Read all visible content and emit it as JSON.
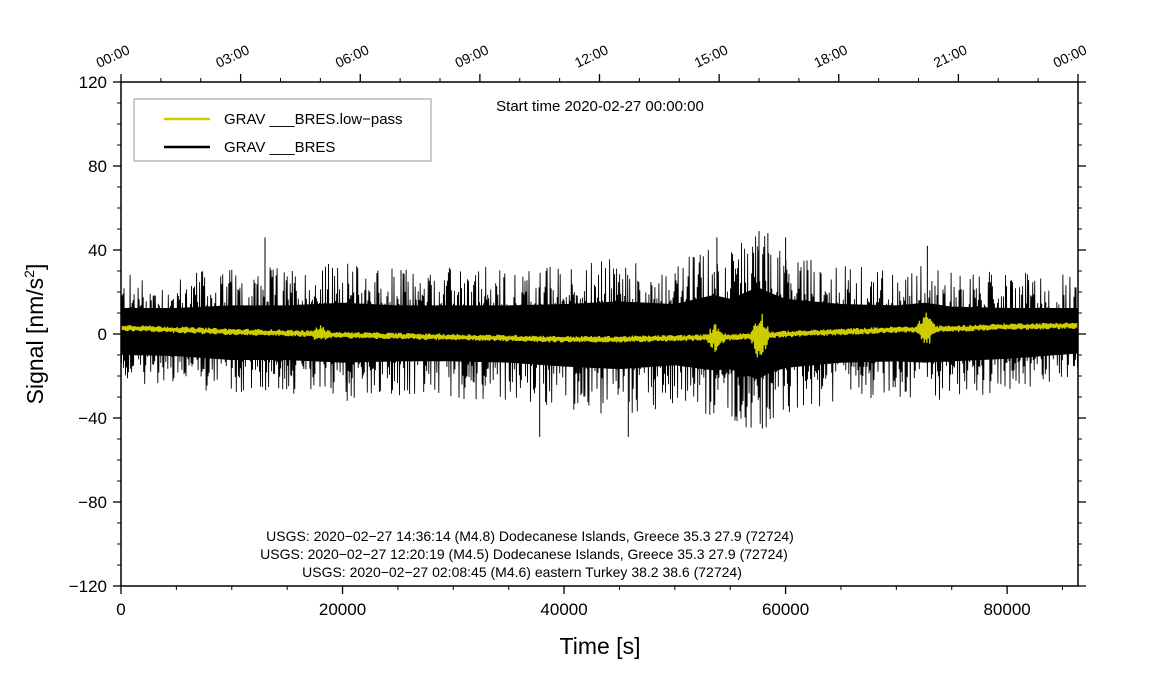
{
  "chart_data": {
    "type": "line",
    "title": "Start time 2020-02-27 00:00:00",
    "xlabel": "Time [s]",
    "ylabel": "Signal [nm/s²]",
    "ylabel_main": "Signal [nm/s",
    "ylabel_sup": "2",
    "ylabel_tail": "]",
    "xlim": [
      0,
      86400
    ],
    "ylim": [
      -120,
      120
    ],
    "x_ticks": [
      0,
      20000,
      40000,
      60000,
      80000
    ],
    "x_tick_labels": [
      "0",
      "20000",
      "40000",
      "60000",
      "80000"
    ],
    "y_ticks": [
      120,
      80,
      40,
      0,
      -40,
      -80,
      -120
    ],
    "y_tick_labels": [
      "120",
      "80",
      "40",
      "0",
      "−40",
      "−80",
      "−120"
    ],
    "top_axis": {
      "ticks": [
        0,
        10800,
        21600,
        32400,
        43200,
        54000,
        64800,
        75600,
        86400
      ],
      "labels": [
        "00:00",
        "03:00",
        "06:00",
        "09:00",
        "12:00",
        "15:00",
        "18:00",
        "21:00",
        "00:00"
      ]
    },
    "legend": {
      "placement": "top-left",
      "entries": [
        {
          "label": "GRAV ___BRES.low−pass",
          "color": "#cccc00"
        },
        {
          "label": "GRAV ___BRES",
          "color": "#000000"
        }
      ]
    },
    "series": [
      {
        "name": "GRAV ___BRES",
        "color": "#000000",
        "envelope_x": [
          0,
          5000,
          10000,
          15000,
          20000,
          25000,
          30000,
          35000,
          40000,
          45000,
          50000,
          53500,
          55000,
          57500,
          58500,
          60000,
          65000,
          70000,
          72600,
          75000,
          80000,
          86400
        ],
        "envelope_upper": [
          20,
          20,
          22,
          22,
          24,
          22,
          22,
          22,
          23,
          25,
          23,
          30,
          27,
          36,
          32,
          27,
          23,
          22,
          24,
          21,
          20,
          20
        ],
        "envelope_lower": [
          -16,
          -17,
          -20,
          -20,
          -22,
          -21,
          -21,
          -22,
          -25,
          -27,
          -24,
          -28,
          -27,
          -35,
          -30,
          -26,
          -22,
          -21,
          -22,
          -21,
          -19,
          -15
        ],
        "spikes": [
          {
            "x": 13000,
            "value": 46
          },
          {
            "x": 37800,
            "value": -49
          },
          {
            "x": 45800,
            "value": -49
          },
          {
            "x": 53800,
            "value": 46
          },
          {
            "x": 57600,
            "value": 49
          },
          {
            "x": 57900,
            "value": -45
          },
          {
            "x": 58400,
            "value": 48
          },
          {
            "x": 60000,
            "value": 46
          },
          {
            "x": 72800,
            "value": 42
          }
        ]
      },
      {
        "name": "GRAV ___BRES.low−pass",
        "color": "#cccc00",
        "x": [
          0,
          5000,
          10000,
          15000,
          20000,
          25000,
          30000,
          35000,
          40000,
          45000,
          50000,
          55000,
          60000,
          65000,
          70000,
          75000,
          80000,
          86400
        ],
        "y": [
          3,
          2,
          1,
          0.5,
          -0.5,
          -1,
          -1.5,
          -2,
          -2.5,
          -2.5,
          -2,
          -1.5,
          0,
          1,
          2,
          2.5,
          3.5,
          4
        ],
        "bursts": [
          {
            "x": 53700,
            "amplitude": 6
          },
          {
            "x": 57700,
            "amplitude": 12
          },
          {
            "x": 72700,
            "amplitude": 8
          },
          {
            "x": 18000,
            "amplitude": 3
          }
        ]
      }
    ],
    "annotations": [
      "USGS: 2020−02−27 14:36:14 (M4.8) Dodecanese Islands, Greece 35.3 27.9 (72724)",
      "USGS: 2020−02−27 12:20:19 (M4.5) Dodecanese Islands, Greece 35.3 27.9 (72724)",
      "USGS: 2020−02−27 02:08:45 (M4.6) eastern Turkey 38.2 38.6 (72724)"
    ]
  }
}
